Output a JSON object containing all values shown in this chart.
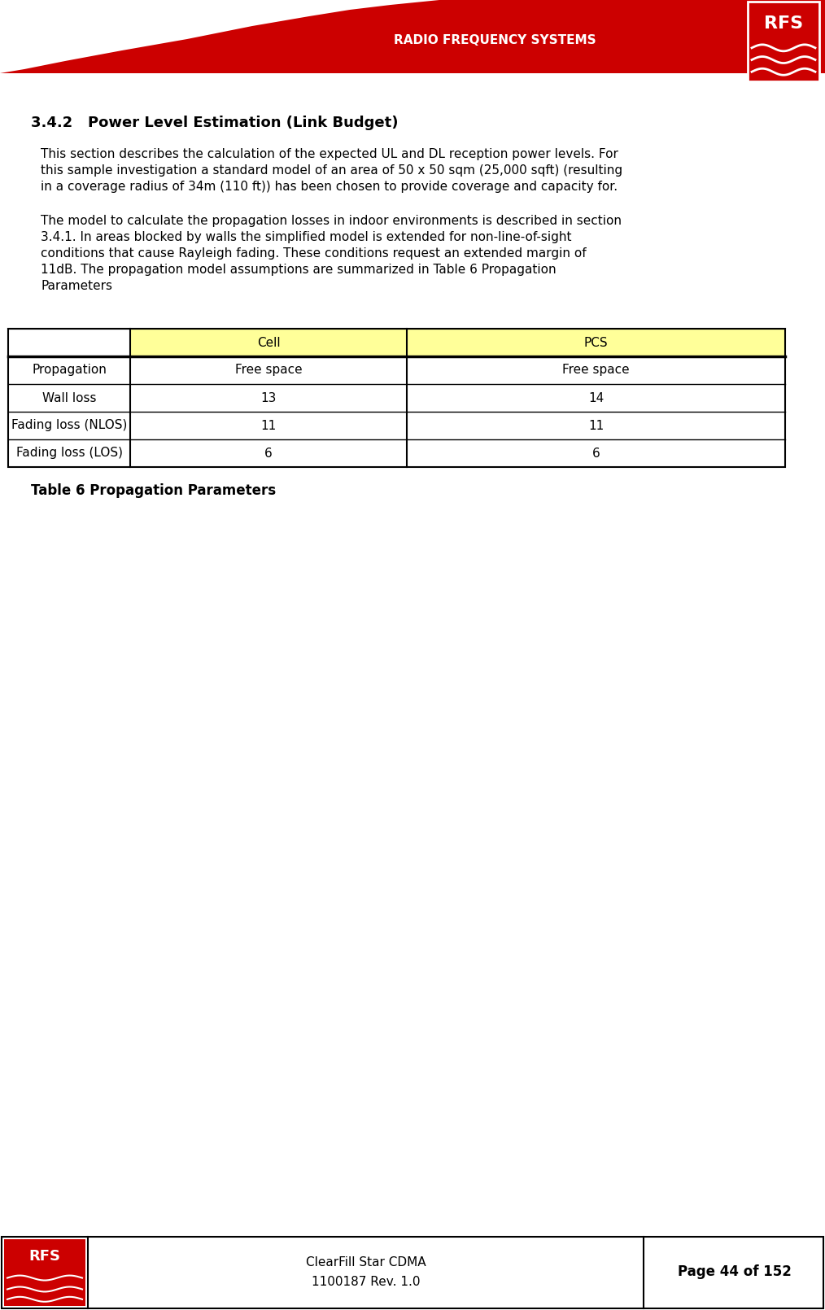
{
  "page_width": 10.14,
  "page_height": 16.1,
  "dpi": 100,
  "bg_color": "#ffffff",
  "header_red": "#cc0000",
  "header_text": "RADIO FREQUENCY SYSTEMS",
  "header_text_color": "#ffffff",
  "section_title": "3.4.2   Power Level Estimation (Link Budget)",
  "para1_lines": [
    "This section describes the calculation of the expected UL and DL reception power levels. For",
    "this sample investigation a standard model of an area of 50 x 50 sqm (25,000 sqft) (resulting",
    "in a coverage radius of 34m (110 ft)) has been chosen to provide coverage and capacity for."
  ],
  "para2_lines": [
    "The model to calculate the propagation losses in indoor environments is described in section",
    "3.4.1. In areas blocked by walls the simplified model is extended for non-line-of-sight",
    "conditions that cause Rayleigh fading. These conditions request an extended margin of",
    "11dB. The propagation model assumptions are summarized in Table 6 Propagation",
    "Parameters"
  ],
  "table_header_bg": "#ffff99",
  "table_col_headers": [
    "Cell",
    "PCS"
  ],
  "table_rows": [
    [
      "Propagation",
      "Free space",
      "Free space"
    ],
    [
      "Wall loss",
      "13",
      "14"
    ],
    [
      "Fading loss (NLOS)",
      "11",
      "11"
    ],
    [
      "Fading loss (LOS)",
      "6",
      "6"
    ]
  ],
  "table_caption": "Table 6 Propagation Parameters",
  "footer_text1": "ClearFill Star CDMA",
  "footer_text2": "1100187 Rev. 1.0",
  "footer_page": "Page 44 of 152",
  "rfs_box_color": "#cc0000"
}
